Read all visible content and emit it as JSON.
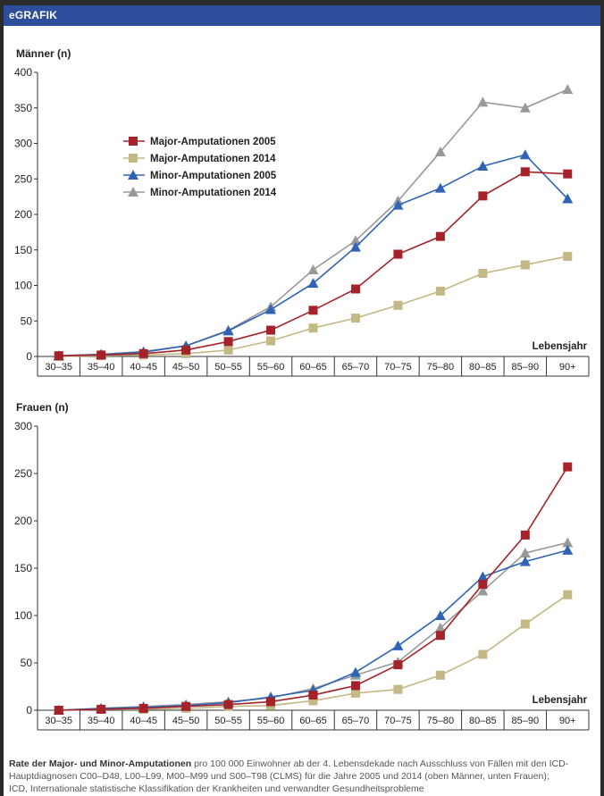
{
  "header": {
    "title": "eGRAFIK"
  },
  "colors": {
    "major2005": "#a52228",
    "major2014": "#c4b884",
    "minor2005": "#2f63b5",
    "minor2014": "#999999",
    "header_bg": "#2d4e9a"
  },
  "chart_data": [
    {
      "type": "line",
      "ylabel": "Männer (n)",
      "xlabel": "Lebensjahr",
      "ylim": [
        0,
        400
      ],
      "yticks": [
        0,
        50,
        100,
        150,
        200,
        250,
        300,
        350,
        400
      ],
      "grid": false,
      "legend": "upper-left",
      "categories": [
        "30–35",
        "35–40",
        "40–45",
        "45–50",
        "50–55",
        "55–60",
        "60–65",
        "65–70",
        "70–75",
        "75–80",
        "80–85",
        "85–90",
        "90+"
      ],
      "series": [
        {
          "name": "Major-Amputationen 2005",
          "marker": "square",
          "color_key": "major2005",
          "values": [
            1,
            2,
            4,
            9,
            21,
            37,
            65,
            95,
            144,
            169,
            226,
            260,
            257
          ]
        },
        {
          "name": "Major-Amputationen 2014",
          "marker": "square",
          "color_key": "major2014",
          "values": [
            0,
            1,
            2,
            4,
            9,
            22,
            40,
            54,
            72,
            92,
            117,
            129,
            141
          ]
        },
        {
          "name": "Minor-Amputationen 2005",
          "marker": "triangle",
          "color_key": "minor2005",
          "values": [
            1,
            3,
            6,
            15,
            36,
            66,
            103,
            154,
            213,
            237,
            268,
            284,
            222
          ]
        },
        {
          "name": "Minor-Amputationen 2014",
          "marker": "triangle",
          "color_key": "minor2014",
          "values": [
            1,
            3,
            7,
            15,
            37,
            70,
            122,
            163,
            219,
            288,
            358,
            350,
            376
          ]
        }
      ]
    },
    {
      "type": "line",
      "ylabel": "Frauen (n)",
      "xlabel": "Lebensjahr",
      "ylim": [
        0,
        300
      ],
      "yticks": [
        0,
        50,
        100,
        150,
        200,
        250,
        300
      ],
      "grid": false,
      "categories": [
        "30–35",
        "35–40",
        "40–45",
        "45–50",
        "50–55",
        "55–60",
        "60–65",
        "65–70",
        "70–75",
        "75–80",
        "80–85",
        "85–90",
        "90+"
      ],
      "series": [
        {
          "name": "Major-Amputationen 2005",
          "marker": "square",
          "color_key": "major2005",
          "values": [
            0,
            1,
            2,
            4,
            6,
            9,
            16,
            26,
            48,
            79,
            133,
            185,
            257
          ]
        },
        {
          "name": "Major-Amputationen 2014",
          "marker": "square",
          "color_key": "major2014",
          "values": [
            0,
            1,
            1,
            2,
            4,
            5,
            10,
            18,
            22,
            37,
            59,
            91,
            122
          ]
        },
        {
          "name": "Minor-Amputationen 2005",
          "marker": "triangle",
          "color_key": "minor2005",
          "values": [
            0,
            2,
            3,
            5,
            8,
            14,
            21,
            40,
            68,
            100,
            141,
            157,
            169
          ]
        },
        {
          "name": "Minor-Amputationen 2014",
          "marker": "triangle",
          "color_key": "minor2014",
          "values": [
            0,
            2,
            4,
            6,
            9,
            13,
            23,
            37,
            51,
            87,
            126,
            166,
            177
          ]
        }
      ]
    }
  ],
  "caption": {
    "bold": "Rate der Major- und Minor-Amputationen",
    "line1_rest": " pro 100 000 Einwohner ab der 4. Lebensdekade nach Ausschluss von Fällen mit den ICD-",
    "line2": "Hauptdiagnosen C00–D48, L00–L99, M00–M99 und S00–T98 (CLMS) für die Jahre 2005 und 2014 (oben Männer, unten Frauen);",
    "line3": "ICD, Internationale statistische Klassifikation der Krankheiten und verwandter Gesundheitsprobleme"
  }
}
